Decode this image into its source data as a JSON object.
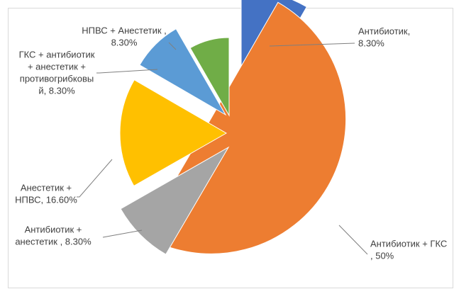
{
  "chart_data": {
    "type": "pie",
    "title": "",
    "slices": [
      {
        "label": "Антибиотик, 8.30%",
        "category": "Антибиотик",
        "value": 8.3,
        "value_label": "8.30%",
        "color": "#4472c4"
      },
      {
        "label": "Антибиотик + ГКС , 50%",
        "category": "Антибиотик + ГКС",
        "value": 50,
        "value_label": "50%",
        "color": "#ed7d31"
      },
      {
        "label": "Антибиотик + анестетик , 8.30%",
        "category": "Антибиотик + анестетик",
        "value": 8.3,
        "value_label": "8.30%",
        "color": "#a5a5a5"
      },
      {
        "label": "Анестетик + НПВС, 16.60%",
        "category": "Анестетик + НПВС",
        "value": 16.6,
        "value_label": "16.60%",
        "color": "#ffc000"
      },
      {
        "label": "ГКС + антибиотик + анестетик + противогрибковый, 8.30%",
        "category": "ГКС + антибиотик + анестетик + противогрибковый",
        "value": 8.3,
        "value_label": "8.30%",
        "color": "#5b9bd5"
      },
      {
        "label": "НПВС + Анестетик , 8.30%",
        "category": "НПВС + Анестетик",
        "value": 8.3,
        "value_label": "8.30%",
        "color": "#70ad47"
      }
    ],
    "legend": "none",
    "exploded": true
  },
  "labels": [
    [
      "Антибиотик,",
      "8.30%"
    ],
    [
      "Антибиотик + ГКС",
      ", 50%"
    ],
    [
      "Антибиотик +",
      "анестетик , 8.30%"
    ],
    [
      "Анестетик +",
      "НПВС, 16.60%"
    ],
    [
      "ГКС + антибиотик",
      "+ анестетик +",
      "противогрибковы",
      "й, 8.30%"
    ],
    [
      "НПВС + Анестетик ,",
      "8.30%"
    ]
  ]
}
